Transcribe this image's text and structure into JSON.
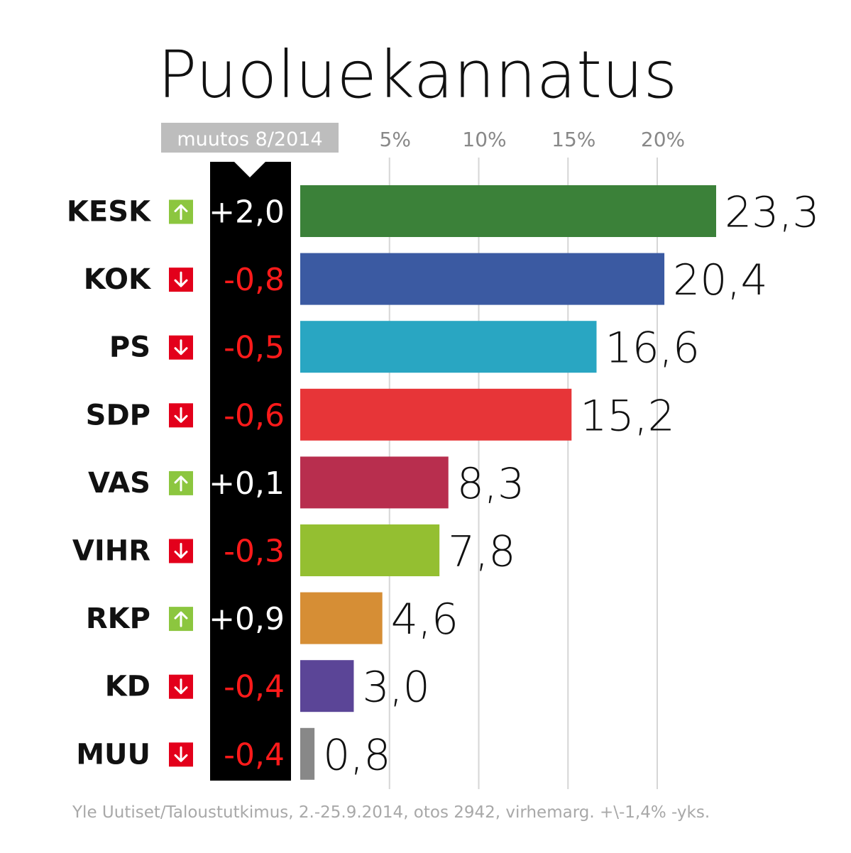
{
  "chart_data": {
    "type": "bar",
    "orientation": "horizontal",
    "title": "Puoluekannatus",
    "change_header": "muutos 8/2014",
    "categories": [
      "KESK",
      "KOK",
      "PS",
      "SDP",
      "VAS",
      "VIHR",
      "RKP",
      "KD",
      "MUU"
    ],
    "values": [
      23.3,
      20.4,
      16.6,
      15.2,
      8.3,
      7.8,
      4.6,
      3.0,
      0.8
    ],
    "value_labels": [
      "23,3",
      "20,4",
      "16,6",
      "15,2",
      "8,3",
      "7,8",
      "4,6",
      "3,0",
      "0,8"
    ],
    "changes": [
      2.0,
      -0.8,
      -0.5,
      -0.6,
      0.1,
      -0.3,
      0.9,
      -0.4,
      -0.4
    ],
    "change_labels": [
      "+2,0",
      "-0,8",
      "-0,5",
      "-0,6",
      "+0,1",
      "-0,3",
      "+0,9",
      "-0,4",
      "-0,4"
    ],
    "colors": [
      "#3b8139",
      "#3b5aa2",
      "#29a6c2",
      "#e73538",
      "#b82e4e",
      "#94bf31",
      "#d68e35",
      "#5b4597",
      "#888888"
    ],
    "xlim": [
      0,
      25
    ],
    "x_ticks": [
      5,
      10,
      15,
      20
    ],
    "x_tick_labels": [
      "5%",
      "10%",
      "15%",
      "20%"
    ],
    "grid": true,
    "up_color": "#8cc63f",
    "down_color": "#e3001b",
    "source": "Yle Uutiset/Taloustutkimus, 2.-25.9.2014, otos 2942, virhemarg. +\\-1,4% -yks."
  }
}
